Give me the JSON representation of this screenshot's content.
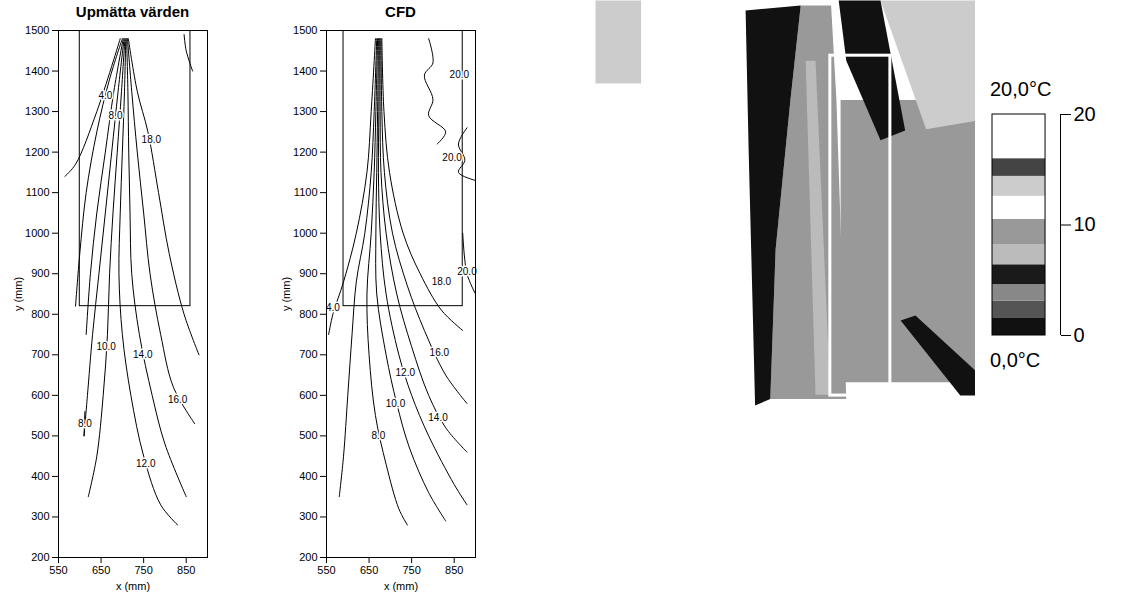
{
  "chart_data": [
    {
      "type": "contour",
      "title": "Upmätta värden",
      "x_label": "x (mm)",
      "y_label": "y (mm)",
      "xlim": [
        550,
        900
      ],
      "ylim": [
        200,
        1500
      ],
      "xticks": [
        550,
        650,
        750,
        850
      ],
      "yticks": [
        200,
        300,
        400,
        500,
        600,
        700,
        800,
        900,
        1000,
        1100,
        1200,
        1300,
        1400,
        1500
      ],
      "box": {
        "x": [
          600,
          860
        ],
        "y": [
          820,
          1500
        ]
      },
      "contours": [
        {
          "x": [
            695,
            640,
            590,
            565
          ],
          "y": [
            1480,
            1300,
            1170,
            1140
          ]
        },
        {
          "label": "4.0",
          "label_at": [
            660,
            1340
          ],
          "x": [
            700,
            670,
            640,
            615,
            600,
            590
          ],
          "y": [
            1480,
            1380,
            1250,
            1100,
            950,
            820
          ]
        },
        {
          "x": [
            702,
            680,
            660,
            640,
            625,
            615
          ],
          "y": [
            1480,
            1350,
            1200,
            1050,
            900,
            750
          ]
        },
        {
          "label": "8.0",
          "label_at": [
            684,
            1290
          ],
          "x": [
            704,
            690,
            675,
            660,
            645,
            630,
            618,
            610
          ],
          "y": [
            1480,
            1350,
            1200,
            1050,
            900,
            750,
            600,
            500
          ]
        },
        {
          "label": "8.0",
          "label_at": [
            612,
            530
          ],
          "x": [
            612,
            610
          ],
          "y": [
            560,
            500
          ]
        },
        {
          "label": "10.0",
          "label_at": [
            662,
            720
          ],
          "x": [
            706,
            698,
            688,
            678,
            670,
            665,
            655,
            640,
            620
          ],
          "y": [
            1480,
            1350,
            1200,
            1050,
            900,
            750,
            600,
            450,
            350
          ]
        },
        {
          "label": "12.0",
          "label_at": [
            755,
            430
          ],
          "x": [
            708,
            705,
            700,
            695,
            692,
            700,
            720,
            750,
            790,
            830
          ],
          "y": [
            1480,
            1350,
            1200,
            1050,
            900,
            750,
            600,
            450,
            330,
            280
          ]
        },
        {
          "label": "14.0",
          "label_at": [
            748,
            700
          ],
          "x": [
            710,
            713,
            715,
            718,
            722,
            740,
            770,
            800,
            850
          ],
          "y": [
            1480,
            1350,
            1200,
            1050,
            900,
            750,
            600,
            480,
            350
          ]
        },
        {
          "label": "16.0",
          "label_at": [
            830,
            590
          ],
          "x": [
            712,
            722,
            735,
            750,
            765,
            790,
            820,
            870
          ],
          "y": [
            1480,
            1350,
            1200,
            1050,
            900,
            750,
            620,
            530
          ]
        },
        {
          "label": "18.0",
          "label_at": [
            768,
            1230
          ],
          "x": [
            714,
            735,
            760,
            785,
            810,
            845,
            880
          ],
          "y": [
            1480,
            1350,
            1250,
            1100,
            950,
            800,
            700
          ]
        },
        {
          "x": [
            845,
            850,
            865
          ],
          "y": [
            1490,
            1450,
            1400
          ]
        }
      ]
    },
    {
      "type": "contour",
      "title": "CFD",
      "x_label": "x (mm)",
      "y_label": "y (mm)",
      "xlim": [
        550,
        900
      ],
      "ylim": [
        200,
        1500
      ],
      "xticks": [
        550,
        650,
        750,
        850
      ],
      "yticks": [
        200,
        300,
        400,
        500,
        600,
        700,
        800,
        900,
        1000,
        1100,
        1200,
        1300,
        1400,
        1500
      ],
      "box": {
        "x": [
          590,
          870
        ],
        "y": [
          820,
          1500
        ]
      },
      "contours": [
        {
          "label": "4.0",
          "label_at": [
            565,
            815
          ],
          "x": [
            665,
            655,
            645,
            620,
            590,
            565,
            555
          ],
          "y": [
            1480,
            1300,
            1150,
            1000,
            880,
            800,
            750
          ]
        },
        {
          "x": [
            668,
            662,
            655,
            640,
            620,
            610,
            600,
            590,
            580
          ],
          "y": [
            1480,
            1300,
            1150,
            1000,
            880,
            750,
            600,
            450,
            350
          ]
        },
        {
          "label": "8.0",
          "label_at": [
            672,
            500
          ],
          "x": [
            670,
            666,
            662,
            655,
            645,
            650,
            665,
            690,
            720,
            740
          ],
          "y": [
            1480,
            1300,
            1150,
            1000,
            850,
            700,
            550,
            430,
            320,
            280
          ]
        },
        {
          "label": "10.0",
          "label_at": [
            712,
            580
          ],
          "x": [
            672,
            670,
            668,
            666,
            668,
            690,
            715,
            745,
            790,
            830
          ],
          "y": [
            1480,
            1300,
            1150,
            1000,
            850,
            700,
            580,
            470,
            360,
            290
          ]
        },
        {
          "label": "12.0",
          "label_at": [
            735,
            655
          ],
          "x": [
            674,
            673,
            672,
            676,
            690,
            720,
            750,
            790,
            850,
            880
          ],
          "y": [
            1480,
            1300,
            1150,
            1000,
            850,
            700,
            600,
            500,
            380,
            330
          ]
        },
        {
          "label": "14.0",
          "label_at": [
            812,
            545
          ],
          "x": [
            676,
            676,
            678,
            690,
            715,
            750,
            790,
            830,
            880
          ],
          "y": [
            1480,
            1300,
            1150,
            1000,
            850,
            720,
            600,
            520,
            460
          ]
        },
        {
          "label": "16.0",
          "label_at": [
            815,
            705
          ],
          "x": [
            678,
            680,
            686,
            705,
            740,
            780,
            830,
            880
          ],
          "y": [
            1480,
            1300,
            1150,
            1000,
            870,
            760,
            650,
            580
          ]
        },
        {
          "label": "18.0",
          "label_at": [
            820,
            880
          ],
          "x": [
            680,
            685,
            698,
            730,
            770,
            820,
            870
          ],
          "y": [
            1480,
            1300,
            1150,
            1000,
            900,
            810,
            760
          ]
        },
        {
          "label": "20.0",
          "label_at": [
            862,
            1390
          ],
          "x": [
            790,
            800,
            780,
            800,
            790,
            830,
            810
          ],
          "y": [
            1480,
            1420,
            1390,
            1330,
            1290,
            1250,
            1220
          ]
        },
        {
          "label": "20.0",
          "label_at": [
            845,
            1185
          ],
          "x": [
            880,
            860,
            875,
            860,
            900
          ],
          "y": [
            1260,
            1220,
            1180,
            1150,
            1130
          ]
        },
        {
          "label": "20.0",
          "label_at": [
            880,
            905
          ],
          "x": [
            870,
            880,
            900
          ],
          "y": [
            1000,
            900,
            850
          ]
        }
      ]
    },
    {
      "type": "image",
      "tick_labels": false,
      "xlim": [
        0,
        100
      ],
      "ylim": [
        0,
        100
      ],
      "color_bar": {
        "clim": [
          0,
          20
        ],
        "cticks": [
          0,
          10,
          20
        ],
        "bounds": [
          0,
          1.6,
          3.1,
          4.6,
          6.4,
          8.2,
          10.5,
          12.6,
          14.4,
          16,
          20
        ],
        "colors": [
          "#111111",
          "#555555",
          "#888888",
          "#1a1a1a",
          "#bbbbbb",
          "#999999",
          "#ffffff",
          "#cccccc",
          "#444444",
          "#ffffff"
        ],
        "max_label": "20,0°C",
        "min_label": "0,0°C"
      },
      "regions": [
        {
          "temp": 18,
          "u": [
            0,
            100,
            100,
            0
          ],
          "v": [
            0,
            0,
            100,
            100
          ]
        },
        {
          "temp": 13.5,
          "u": [
            0,
            12,
            12,
            0
          ],
          "v": [
            0,
            0,
            20,
            20
          ]
        },
        {
          "temp": 9,
          "u": [
            64.5,
            100,
            100,
            64.5
          ],
          "v": [
            24,
            24,
            92,
            92
          ]
        },
        {
          "temp": 13.5,
          "u": [
            75,
            100,
            100,
            87
          ],
          "v": [
            0,
            0,
            29,
            31
          ]
        },
        {
          "temp": 0.8,
          "u": [
            64,
            75,
            81.5,
            75,
            66
          ],
          "v": [
            0,
            0,
            31.3,
            33.7,
            14.5
          ]
        },
        {
          "temp": 9,
          "u": [
            54,
            62,
            63.4,
            66,
            46,
            47.4,
            51.3
          ],
          "v": [
            1.2,
            1.2,
            24,
            96,
            96,
            60,
            24
          ]
        },
        {
          "temp": 7,
          "u": [
            55.3,
            57.9,
            61.8,
            57.9
          ],
          "v": [
            14.5,
            14.5,
            95,
            95
          ]
        },
        {
          "temp": 0.8,
          "u": [
            39.5,
            54,
            51.3,
            47.4,
            46,
            42,
            41.3,
            40.3
          ],
          "v": [
            2.4,
            1.2,
            24,
            60,
            96,
            97.6,
            72,
            36
          ]
        },
        {
          "temp": 0.8,
          "u": [
            80.3,
            84.2,
            100,
            100,
            96
          ],
          "v": [
            77.1,
            75.9,
            89.2,
            95.2,
            95.2
          ]
        }
      ],
      "box": {
        "u": [
          61.8,
          77.6
        ],
        "v": [
          13.3,
          95.2
        ]
      }
    }
  ]
}
